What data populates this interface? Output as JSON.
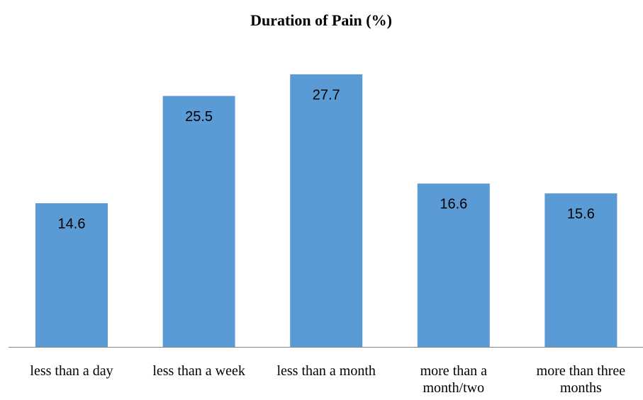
{
  "chart_data": {
    "type": "bar",
    "title": "Duration of Pain (%)",
    "categories": [
      "less than a day",
      "less than a week",
      "less than a month",
      "more than a month/two",
      "more than three months"
    ],
    "values": [
      14.6,
      25.5,
      27.7,
      16.6,
      15.6
    ],
    "color": "#5b9bd5"
  }
}
